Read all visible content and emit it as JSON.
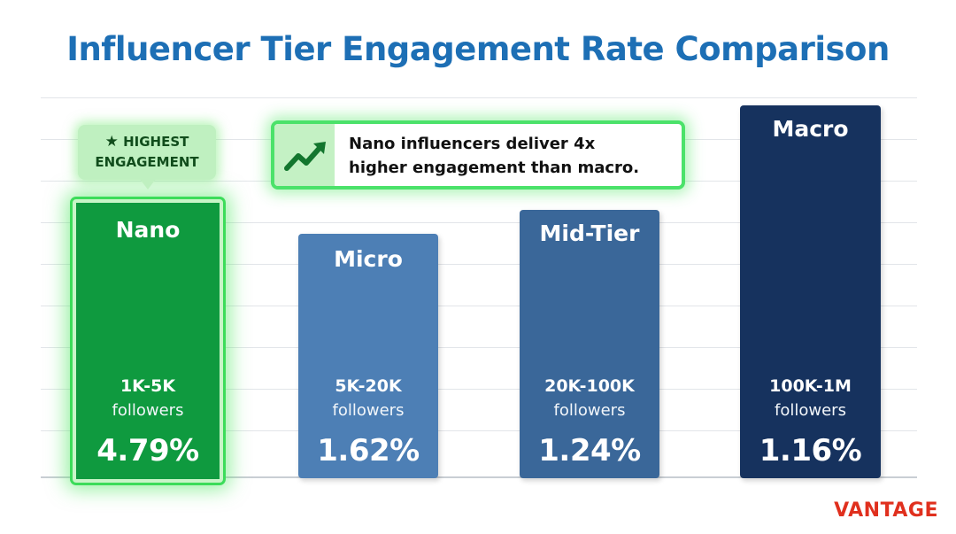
{
  "title": "Influencer Tier Engagement Rate Comparison",
  "badge": {
    "line1": "HIGHEST",
    "line2": "ENGAGEMENT",
    "icon": "star-icon"
  },
  "callout": {
    "line1": "Nano influencers deliver 4x",
    "line2": "higher engagement than macro.",
    "icon": "trending-up-icon"
  },
  "brand": "VANTAGE",
  "colors": {
    "nano": "#0f9a3f",
    "micro": "#4d7fb5",
    "mid": "#3a6799",
    "macro": "#16325e",
    "title": "#1d6fb5",
    "brand": "#e0301e"
  },
  "chart_data": {
    "type": "bar",
    "title": "Influencer Tier Engagement Rate Comparison",
    "categories": [
      "Nano",
      "Micro",
      "Mid-Tier",
      "Macro"
    ],
    "follower_ranges": [
      "1K-5K",
      "5K-20K",
      "20K-100K",
      "100K-1M"
    ],
    "followers_label": "followers",
    "values": [
      4.79,
      1.62,
      1.24,
      1.16
    ],
    "value_labels": [
      "4.79%",
      "1.62%",
      "1.24%",
      "1.16%"
    ],
    "grid": true,
    "highlight": "Nano"
  }
}
